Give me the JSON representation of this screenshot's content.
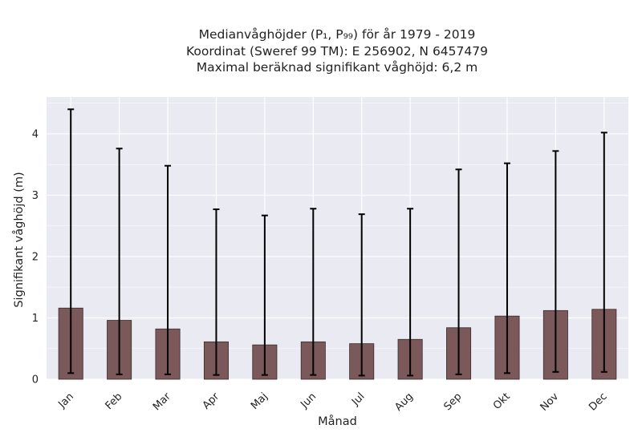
{
  "chart_data": {
    "type": "bar",
    "title_lines": [
      "Medianvåghöjder (P₁, P₉₉) för år 1979 - 2019",
      "Koordinat (Sweref 99 TM): E 256902, N 6457479",
      "Maximal beräknad signifikant våghöjd: 6,2 m"
    ],
    "xlabel": "Månad",
    "ylabel": "Signifikant våghöjd (m)",
    "categories": [
      "Jan",
      "Feb",
      "Mar",
      "Apr",
      "Maj",
      "Jun",
      "Jul",
      "Aug",
      "Sep",
      "Okt",
      "Nov",
      "Dec"
    ],
    "values": [
      1.16,
      0.96,
      0.82,
      0.61,
      0.56,
      0.61,
      0.58,
      0.65,
      0.84,
      1.03,
      1.12,
      1.14
    ],
    "error_low": [
      0.1,
      0.08,
      0.08,
      0.07,
      0.07,
      0.07,
      0.06,
      0.06,
      0.08,
      0.1,
      0.12,
      0.12
    ],
    "error_high": [
      4.4,
      3.76,
      3.48,
      2.77,
      2.67,
      2.78,
      2.69,
      2.78,
      3.42,
      3.52,
      3.72,
      4.02
    ],
    "ylim": [
      0,
      4.6
    ],
    "yticks": [
      0,
      1,
      2,
      3,
      4
    ],
    "grid": true,
    "colors": {
      "bar": "#7b5859",
      "bar_edge": "#3a2a2b",
      "error": "#000000",
      "plot_bg": "#eaeaf2",
      "grid": "#ffffff"
    }
  }
}
